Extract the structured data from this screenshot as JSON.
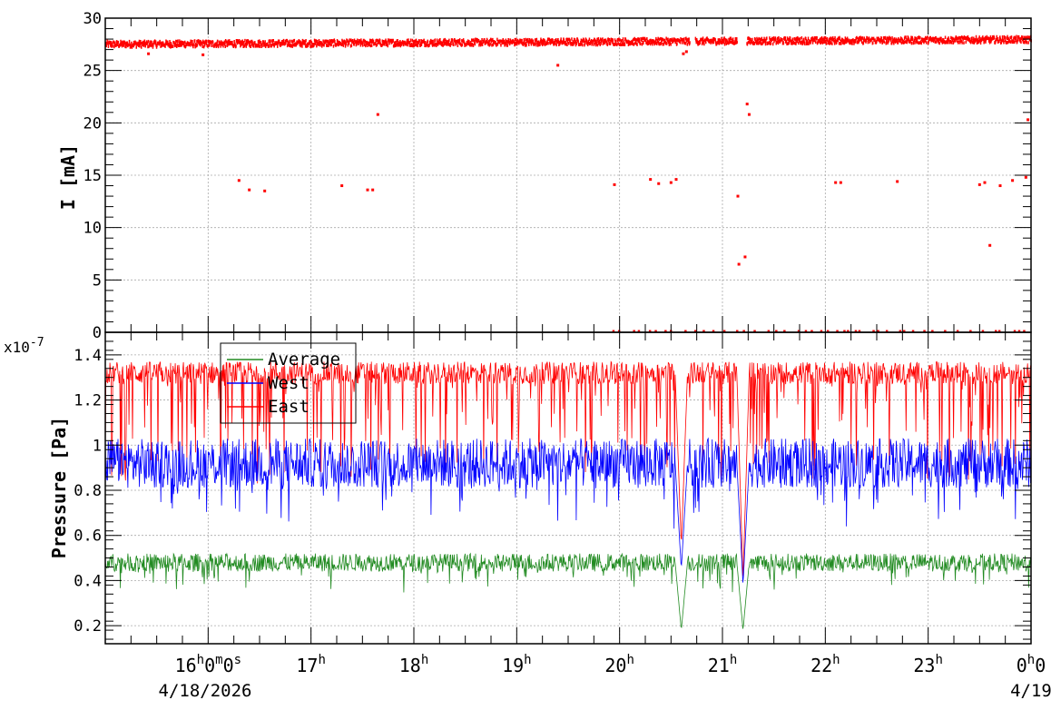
{
  "chart_data": [
    {
      "type": "scatter",
      "panel": "top",
      "ylabel": "I [mA]",
      "ylim": [
        0,
        30
      ],
      "yticks": [
        "0",
        "5",
        "10",
        "15",
        "20",
        "25",
        "30"
      ],
      "grid": true,
      "series": [
        {
          "color": "#ff0000",
          "baseline_mA": 27.5,
          "x": [
            15.42,
            15.95,
            16.3,
            16.4,
            16.55,
            17.3,
            17.55,
            17.6,
            17.65,
            19.4,
            19.95,
            20.3,
            20.38,
            20.5,
            20.55,
            20.62,
            20.65,
            21.15,
            21.16,
            21.22,
            21.24,
            21.26,
            22.1,
            22.15,
            22.7,
            23.5,
            23.55,
            23.6,
            23.7,
            23.82,
            23.95,
            23.97
          ],
          "y": [
            26.6,
            26.5,
            14.5,
            13.6,
            13.5,
            14.0,
            13.6,
            13.6,
            20.8,
            25.5,
            14.1,
            14.6,
            14.2,
            14.3,
            14.6,
            26.6,
            26.8,
            13.0,
            6.5,
            7.2,
            21.8,
            20.8,
            14.3,
            14.3,
            14.4,
            14.1,
            14.3,
            8.3,
            14.0,
            14.5,
            14.8,
            20.3
          ]
        }
      ]
    },
    {
      "type": "line",
      "panel": "bottom",
      "ylabel": "Pressure [Pa]",
      "exponent_label": "x10",
      "exponent_power": "-7",
      "ylim": [
        0.12,
        1.5
      ],
      "yticks": [
        "0.2",
        "0.4",
        "0.6",
        "0.8",
        "1",
        "1.2",
        "1.4"
      ],
      "grid": true,
      "legend_position": "top-left",
      "series": [
        {
          "name": "Average",
          "color": "#228b22",
          "base": 0.48,
          "dip_x": [
            20.6,
            21.2
          ],
          "dip_y": [
            0.18,
            0.18
          ]
        },
        {
          "name": "West",
          "color": "#0000ff",
          "base": 0.92,
          "dip_x": [
            20.6,
            21.2
          ],
          "dip_y": [
            0.45,
            0.38
          ]
        },
        {
          "name": "East",
          "color": "#ff0000",
          "base": 1.32,
          "dip_x": [
            20.6,
            21.2
          ],
          "dip_y": [
            0.55,
            0.4
          ]
        }
      ]
    }
  ],
  "x_axis": {
    "range_hours": [
      15.0,
      24.0
    ],
    "ticks": [
      {
        "h": 16,
        "main": "16",
        "sup1": "h",
        "mid": "0",
        "sup2": "m",
        "mid2": "0",
        "sup3": "s"
      },
      {
        "h": 17,
        "main": "17",
        "sup1": "h"
      },
      {
        "h": 18,
        "main": "18",
        "sup1": "h"
      },
      {
        "h": 19,
        "main": "19",
        "sup1": "h"
      },
      {
        "h": 20,
        "main": "20",
        "sup1": "h"
      },
      {
        "h": 21,
        "main": "21",
        "sup1": "h"
      },
      {
        "h": 22,
        "main": "22",
        "sup1": "h"
      },
      {
        "h": 23,
        "main": "23",
        "sup1": "h"
      },
      {
        "h": 24,
        "main": "0",
        "sup1": "h",
        "mid": "0"
      }
    ],
    "date_left": "4/18/2026",
    "date_right": "4/19"
  }
}
